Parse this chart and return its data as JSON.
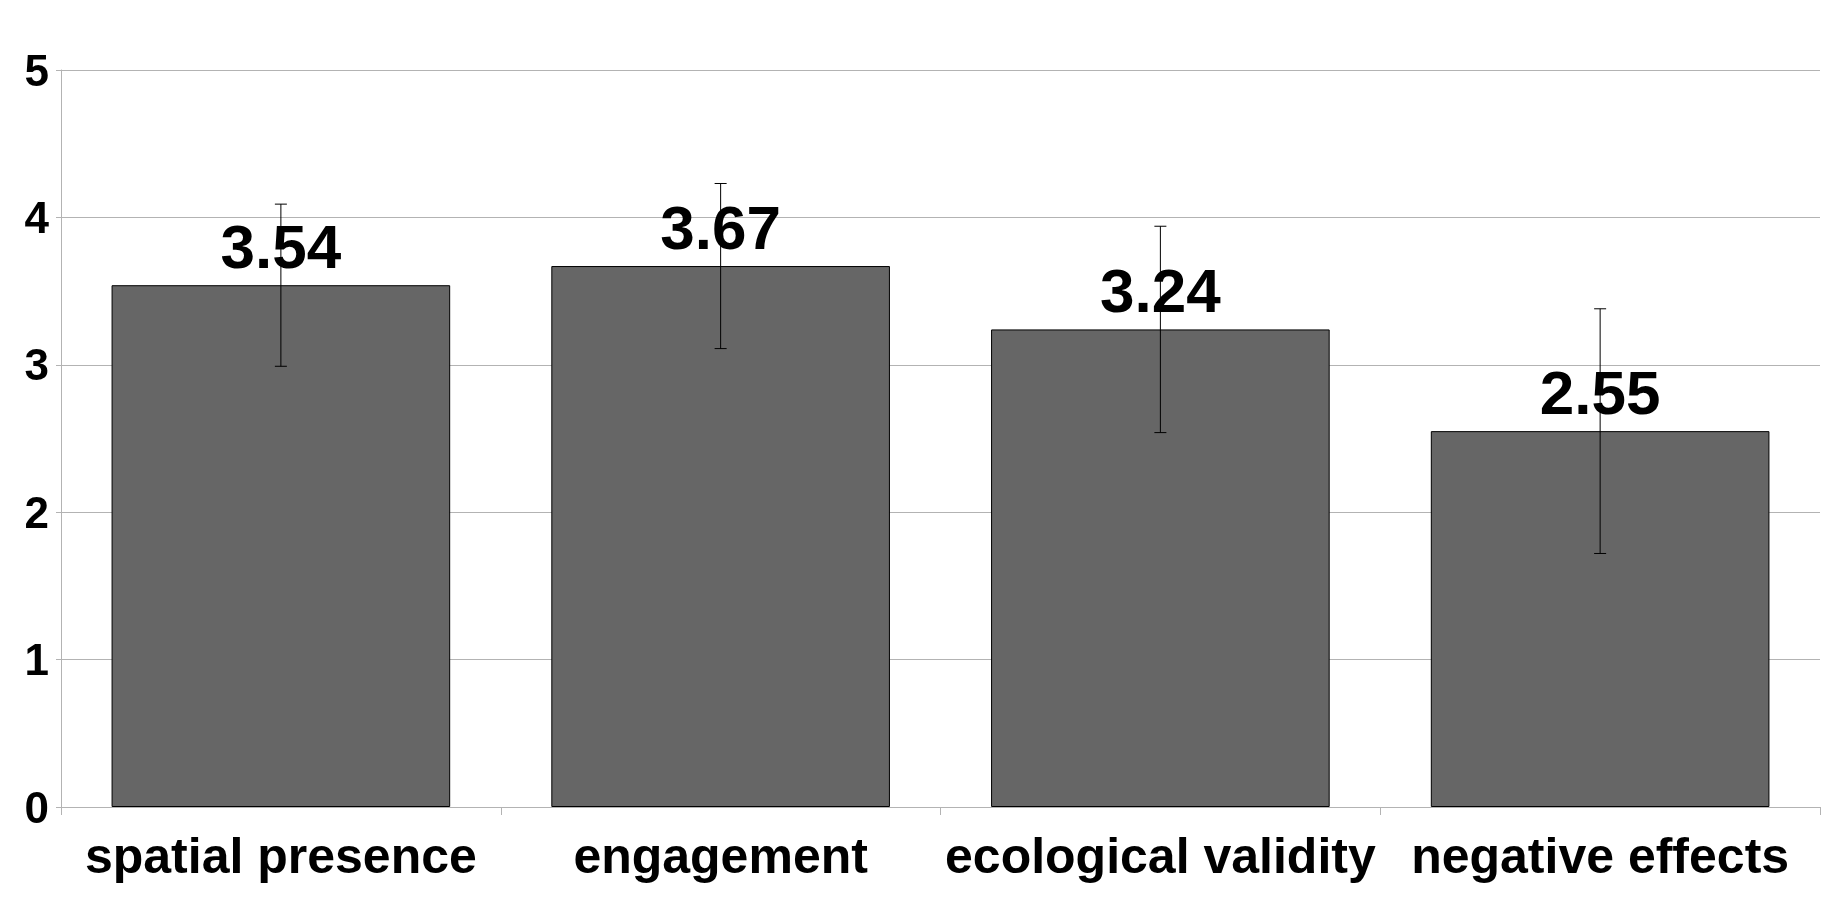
{
  "chart_data": {
    "type": "bar",
    "categories": [
      "spatial presence",
      "engagement",
      "ecological validity",
      "negative effects"
    ],
    "values": [
      3.54,
      3.67,
      3.24,
      2.55
    ],
    "errors": [
      0.55,
      0.56,
      0.7,
      0.83
    ],
    "color": "#666666",
    "ylim": [
      0,
      5
    ],
    "yticks": [
      0,
      1,
      2,
      3,
      4,
      5
    ],
    "grid": "y",
    "data_labels": true
  }
}
